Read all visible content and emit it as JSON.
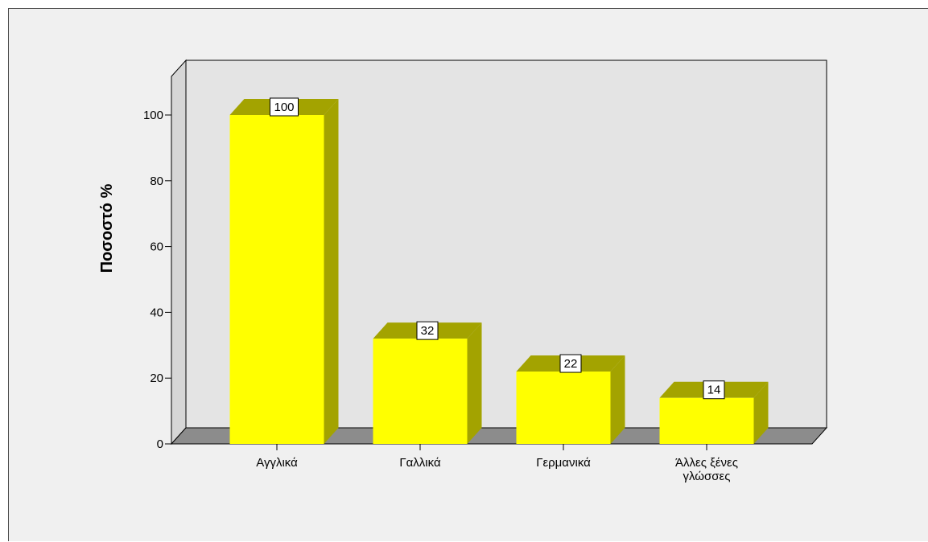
{
  "chart_data": {
    "type": "bar",
    "categories": [
      "Αγγλικά",
      "Γαλλικά",
      "Γερμανικά",
      "Άλλες ξένες γλώσσες"
    ],
    "category_label_lines": [
      [
        "Αγγλικά"
      ],
      [
        "Γαλλικά"
      ],
      [
        "Γερμανικά"
      ],
      [
        "Άλλες ξένες",
        "γλώσσες"
      ]
    ],
    "values": [
      100,
      32,
      22,
      14
    ],
    "data_labels": [
      "100",
      "32",
      "22",
      "14"
    ],
    "title": "",
    "xlabel": "",
    "ylabel": "Ποσοστό %",
    "ylim": [
      0,
      100
    ],
    "yticks": [
      0,
      20,
      40,
      60,
      80,
      100
    ],
    "grid": false,
    "three_d": true,
    "colors": {
      "bar_front": "#ffff00",
      "bar_side": "#a3a300",
      "bar_top": "#a3a300",
      "back_wall": "#e4e4e4",
      "left_wall": "#d6d6d6",
      "floor": "#8c8c8c",
      "background": "#f0f0f0"
    }
  }
}
